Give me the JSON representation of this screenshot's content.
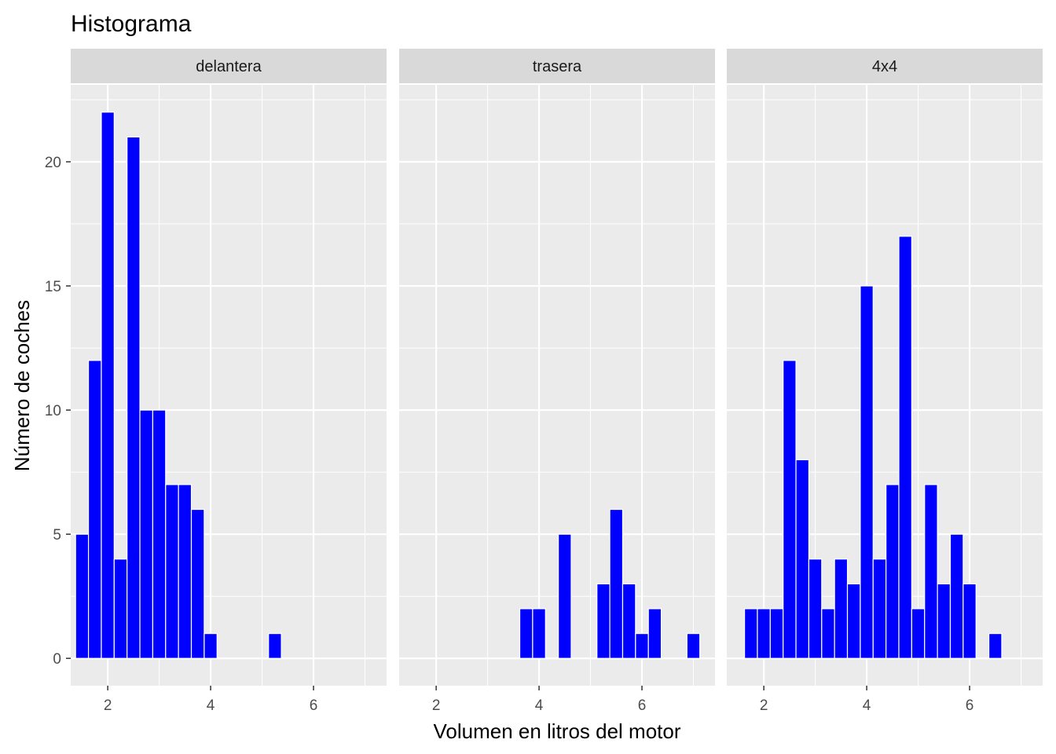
{
  "chart_data": {
    "type": "bar",
    "title": "Histograma",
    "xlabel": "Volumen en litros del motor",
    "ylabel": "Número de coches",
    "xlim": [
      1.28,
      7.42
    ],
    "ylim": [
      -1.1,
      23.1
    ],
    "x_ticks": [
      2,
      4,
      6
    ],
    "y_ticks": [
      0,
      5,
      10,
      15,
      20
    ],
    "bar_fill": "#0000FF",
    "bar_outline": "#FFFFFF",
    "panel_background": "#EBEBEB",
    "strip_background": "#D9D9D9",
    "grid": true,
    "bin_width": 0.25,
    "panels": [
      {
        "label": "delantera",
        "bins": [
          {
            "x": 1.5,
            "count": 5
          },
          {
            "x": 1.75,
            "count": 12
          },
          {
            "x": 2.0,
            "count": 22
          },
          {
            "x": 2.25,
            "count": 4
          },
          {
            "x": 2.5,
            "count": 21
          },
          {
            "x": 2.75,
            "count": 10
          },
          {
            "x": 3.0,
            "count": 10
          },
          {
            "x": 3.25,
            "count": 7
          },
          {
            "x": 3.5,
            "count": 7
          },
          {
            "x": 3.75,
            "count": 6
          },
          {
            "x": 4.0,
            "count": 1
          },
          {
            "x": 5.25,
            "count": 1
          }
        ]
      },
      {
        "label": "trasera",
        "bins": [
          {
            "x": 3.75,
            "count": 2
          },
          {
            "x": 4.0,
            "count": 2
          },
          {
            "x": 4.5,
            "count": 5
          },
          {
            "x": 5.25,
            "count": 3
          },
          {
            "x": 5.5,
            "count": 6
          },
          {
            "x": 5.75,
            "count": 3
          },
          {
            "x": 6.0,
            "count": 1
          },
          {
            "x": 6.25,
            "count": 2
          },
          {
            "x": 7.0,
            "count": 1
          }
        ]
      },
      {
        "label": "4x4",
        "bins": [
          {
            "x": 1.75,
            "count": 2
          },
          {
            "x": 2.0,
            "count": 2
          },
          {
            "x": 2.25,
            "count": 2
          },
          {
            "x": 2.5,
            "count": 12
          },
          {
            "x": 2.75,
            "count": 8
          },
          {
            "x": 3.0,
            "count": 4
          },
          {
            "x": 3.25,
            "count": 2
          },
          {
            "x": 3.5,
            "count": 4
          },
          {
            "x": 3.75,
            "count": 3
          },
          {
            "x": 4.0,
            "count": 15
          },
          {
            "x": 4.25,
            "count": 4
          },
          {
            "x": 4.5,
            "count": 7
          },
          {
            "x": 4.75,
            "count": 17
          },
          {
            "x": 5.0,
            "count": 2
          },
          {
            "x": 5.25,
            "count": 7
          },
          {
            "x": 5.5,
            "count": 3
          },
          {
            "x": 5.75,
            "count": 5
          },
          {
            "x": 6.0,
            "count": 3
          },
          {
            "x": 6.5,
            "count": 1
          }
        ]
      }
    ]
  }
}
